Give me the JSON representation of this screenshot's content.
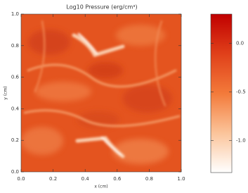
{
  "chart_data": {
    "type": "heatmap",
    "title": "Log10 Pressure (erg/cm³)",
    "xlabel": "x (cm)",
    "ylabel": "y (cm)",
    "xlim": [
      0,
      1
    ],
    "xticks": [
      {
        "value": 0,
        "label": "0.0"
      },
      0.2,
      0.4,
      0.6,
      0.8,
      {
        "value": 1,
        "label": "1.0"
      }
    ],
    "ylim": [
      0,
      1
    ],
    "yticks": [
      {
        "value": 0,
        "label": "0.0"
      },
      0.2,
      0.4,
      0.6,
      0.8,
      {
        "value": 1,
        "label": "1.0"
      }
    ],
    "clim": [
      -1.33,
      0.3
    ],
    "cticks": [
      {
        "value": 0,
        "label": "0.0"
      },
      -0.5,
      {
        "value": -1,
        "label": "-1.0"
      }
    ],
    "colormap": [
      "#ffffff",
      "#fbc49a",
      "#f37a3a",
      "#e0401a",
      "#c00000"
    ]
  }
}
